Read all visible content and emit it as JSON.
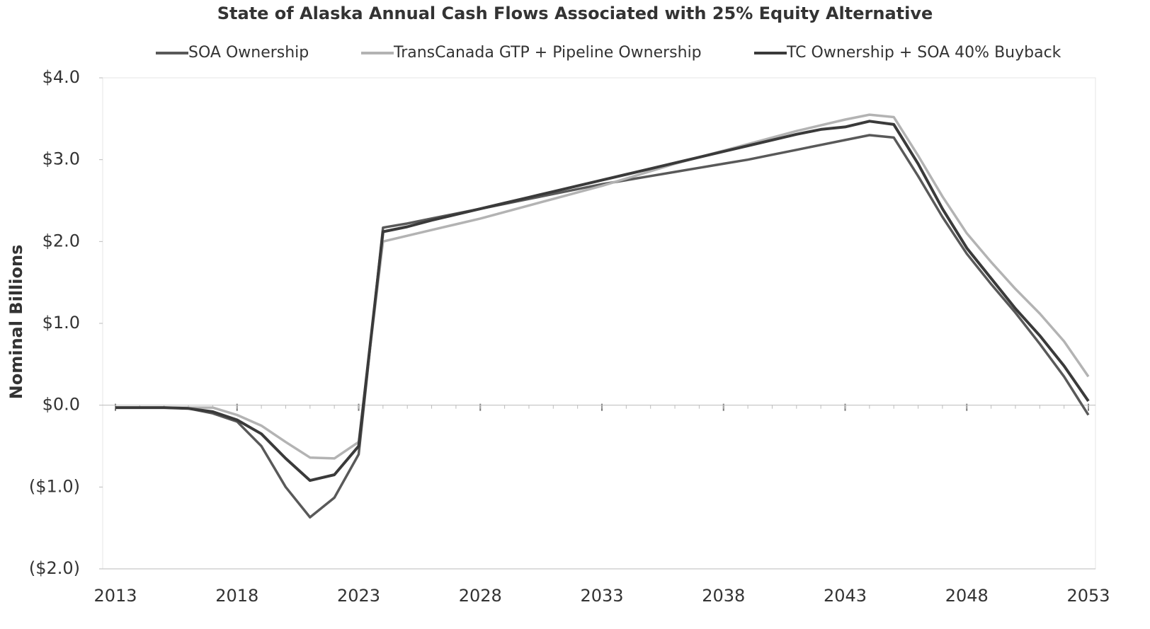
{
  "chart_data": {
    "type": "line",
    "title": "State of Alaska Annual Cash Flows Associated with 25% Equity Alternative",
    "y_label": "Nominal Billions",
    "x": [
      2013,
      2014,
      2015,
      2016,
      2017,
      2018,
      2019,
      2020,
      2021,
      2022,
      2023,
      2024,
      2025,
      2026,
      2027,
      2028,
      2029,
      2030,
      2031,
      2032,
      2033,
      2034,
      2035,
      2036,
      2037,
      2038,
      2039,
      2040,
      2041,
      2042,
      2043,
      2044,
      2045,
      2046,
      2047,
      2048,
      2049,
      2050,
      2051,
      2052,
      2053
    ],
    "series": [
      {
        "name": "SOA Ownership",
        "color": "#595959",
        "values": [
          -0.03,
          -0.03,
          -0.03,
          -0.04,
          -0.1,
          -0.2,
          -0.5,
          -1.0,
          -1.37,
          -1.13,
          -0.6,
          2.17,
          2.22,
          2.28,
          2.34,
          2.4,
          2.46,
          2.52,
          2.58,
          2.64,
          2.7,
          2.75,
          2.8,
          2.85,
          2.9,
          2.95,
          3.0,
          3.06,
          3.12,
          3.18,
          3.24,
          3.3,
          3.27,
          2.8,
          2.3,
          1.85,
          1.48,
          1.13,
          0.75,
          0.35,
          -0.12
        ]
      },
      {
        "name": "TransCanada GTP + Pipeline Ownership",
        "color": "#b3b3b3",
        "values": [
          -0.03,
          -0.03,
          -0.03,
          -0.03,
          -0.03,
          -0.12,
          -0.25,
          -0.45,
          -0.64,
          -0.65,
          -0.45,
          2.0,
          2.07,
          2.14,
          2.21,
          2.28,
          2.36,
          2.44,
          2.52,
          2.6,
          2.68,
          2.77,
          2.86,
          2.95,
          3.03,
          3.11,
          3.19,
          3.27,
          3.35,
          3.42,
          3.49,
          3.55,
          3.52,
          3.05,
          2.55,
          2.1,
          1.75,
          1.42,
          1.12,
          0.78,
          0.35
        ]
      },
      {
        "name": "TC Ownership + SOA 40% Buyback",
        "color": "#3a3a3a",
        "values": [
          -0.03,
          -0.03,
          -0.03,
          -0.04,
          -0.08,
          -0.18,
          -0.35,
          -0.65,
          -0.92,
          -0.85,
          -0.5,
          2.12,
          2.18,
          2.26,
          2.33,
          2.4,
          2.47,
          2.54,
          2.61,
          2.68,
          2.75,
          2.82,
          2.89,
          2.96,
          3.03,
          3.1,
          3.17,
          3.24,
          3.31,
          3.37,
          3.4,
          3.47,
          3.43,
          2.95,
          2.4,
          1.92,
          1.55,
          1.18,
          0.85,
          0.48,
          0.05
        ]
      }
    ],
    "xlim": [
      2013,
      2053
    ],
    "xticks": [
      2013,
      2018,
      2023,
      2028,
      2033,
      2038,
      2043,
      2048,
      2053
    ],
    "ylim": [
      -2,
      4
    ],
    "yticks": [
      {
        "value": 4,
        "label": "$4.0"
      },
      {
        "value": 3,
        "label": "$3.0"
      },
      {
        "value": 2,
        "label": "$2.0"
      },
      {
        "value": 1,
        "label": "$1.0"
      },
      {
        "value": 0,
        "label": "$0.0"
      },
      {
        "value": -1,
        "label": "($1.0)"
      },
      {
        "value": -2,
        "label": "($2.0)"
      }
    ],
    "legend": "top"
  }
}
